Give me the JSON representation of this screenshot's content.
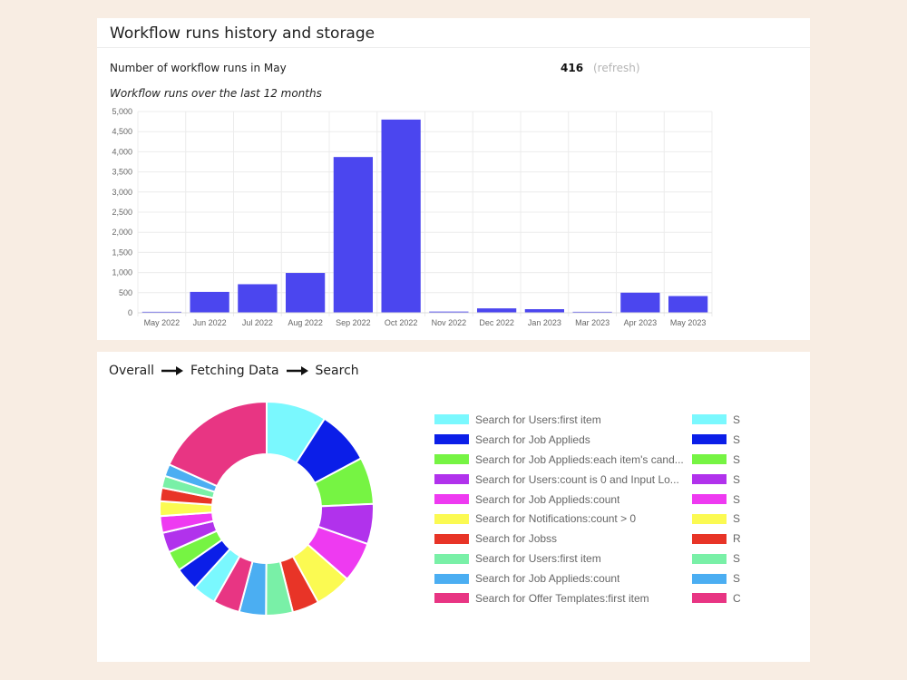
{
  "history": {
    "title": "Workflow runs history and storage",
    "runs_label": "Number of workflow runs in May",
    "runs_count": "416",
    "refresh_label": "(refresh)",
    "chart_subtitle": "Workflow runs over the last 12 months"
  },
  "chart_data": {
    "type": "bar",
    "title": "Workflow runs over the last 12 months",
    "categories": [
      "May 2022",
      "Jun 2022",
      "Jul 2022",
      "Aug 2022",
      "Sep 2022",
      "Oct 2022",
      "Nov 2022",
      "Dec 2022",
      "Jan 2023",
      "Mar 2023",
      "Apr 2023",
      "May 2023"
    ],
    "values": [
      25,
      520,
      710,
      990,
      3870,
      4800,
      30,
      110,
      90,
      25,
      500,
      416
    ],
    "yticks": [
      0,
      500,
      1000,
      1500,
      2000,
      2500,
      3000,
      3500,
      4000,
      4500,
      5000
    ],
    "ytick_labels": [
      "0",
      "500",
      "1,000",
      "1,500",
      "2,000",
      "2,500",
      "3,000",
      "3,500",
      "4,000",
      "4,500",
      "5,000"
    ],
    "ylim": [
      0,
      5000
    ],
    "bar_color": "#4b46ef",
    "xlabel": "",
    "ylabel": ""
  },
  "breadcrumb": {
    "items": [
      "Overall",
      "Fetching Data",
      "Search"
    ],
    "arrow_icon": "long-arrow-right-icon"
  },
  "donut": {
    "slices": [
      {
        "value": 9,
        "color": "#7af8fe"
      },
      {
        "value": 8,
        "color": "#0b1ee8"
      },
      {
        "value": 7,
        "color": "#76f443"
      },
      {
        "value": 6,
        "color": "#b132ec"
      },
      {
        "value": 6,
        "color": "#ee3af1"
      },
      {
        "value": 5.5,
        "color": "#fbfa52"
      },
      {
        "value": 4,
        "color": "#e83427"
      },
      {
        "value": 4,
        "color": "#79f0a7"
      },
      {
        "value": 4,
        "color": "#4baef2"
      },
      {
        "value": 4,
        "color": "#e83583"
      },
      {
        "value": 3.5,
        "color": "#7af8fe"
      },
      {
        "value": 3.5,
        "color": "#0b1ee8"
      },
      {
        "value": 3,
        "color": "#76f443"
      },
      {
        "value": 3,
        "color": "#b132ec"
      },
      {
        "value": 2.5,
        "color": "#ee3af1"
      },
      {
        "value": 2.2,
        "color": "#fbfa52"
      },
      {
        "value": 2,
        "color": "#e83427"
      },
      {
        "value": 1.8,
        "color": "#79f0a7"
      },
      {
        "value": 1.8,
        "color": "#4baef2"
      },
      {
        "value": 18,
        "color": "#e83583"
      }
    ]
  },
  "legend": [
    {
      "label": "Search for Users:first item",
      "color": "#7af8fe"
    },
    {
      "label": "Search for Job Applieds",
      "color": "#0b1ee8"
    },
    {
      "label": "Search for Job Applieds:each item's cand...",
      "color": "#76f443"
    },
    {
      "label": "Search for Users:count is 0 and Input Lo...",
      "color": "#b132ec"
    },
    {
      "label": "Search for Job Applieds:count",
      "color": "#ee3af1"
    },
    {
      "label": "Search for Notifications:count > 0",
      "color": "#fbfa52"
    },
    {
      "label": "Search for Jobss",
      "color": "#e83427"
    },
    {
      "label": "Search for Users:first item",
      "color": "#79f0a7"
    },
    {
      "label": "Search for Job Applieds:count",
      "color": "#4baef2"
    },
    {
      "label": "Search for Offer Templates:first item",
      "color": "#e83583"
    }
  ],
  "legend2": [
    {
      "label": "S",
      "color": "#7af8fe"
    },
    {
      "label": "S",
      "color": "#0b1ee8"
    },
    {
      "label": "S",
      "color": "#76f443"
    },
    {
      "label": "S",
      "color": "#b132ec"
    },
    {
      "label": "S",
      "color": "#ee3af1"
    },
    {
      "label": "S",
      "color": "#fbfa52"
    },
    {
      "label": "R",
      "color": "#e83427"
    },
    {
      "label": "S",
      "color": "#79f0a7"
    },
    {
      "label": "S",
      "color": "#4baef2"
    },
    {
      "label": "C",
      "color": "#e83583"
    }
  ]
}
